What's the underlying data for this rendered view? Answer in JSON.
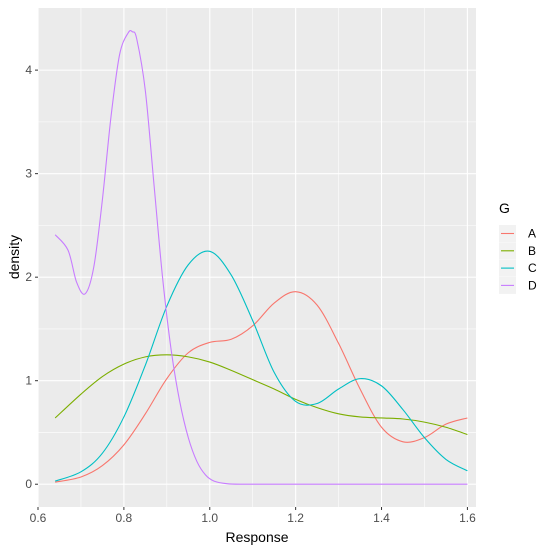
{
  "chart_data": {
    "type": "line",
    "title": "",
    "xlabel": "Response",
    "ylabel": "density",
    "xlim": [
      0.6,
      1.62
    ],
    "ylim": [
      -0.22,
      4.6
    ],
    "x_ticks": [
      0.6,
      0.8,
      1.0,
      1.2,
      1.4,
      1.6
    ],
    "x_tick_labels": [
      "0.6",
      "0.8",
      "1.0",
      "1.2",
      "1.4",
      "1.6"
    ],
    "y_ticks": [
      0,
      1,
      2,
      3,
      4
    ],
    "y_tick_labels": [
      "0",
      "1",
      "2",
      "3",
      "4"
    ],
    "grid": true,
    "panel_background": "#ebebeb",
    "legend": {
      "title": "G",
      "position": "right"
    },
    "series": [
      {
        "name": "A",
        "color": "#F8766D",
        "x": [
          0.64,
          0.7,
          0.75,
          0.8,
          0.85,
          0.9,
          0.95,
          1.0,
          1.05,
          1.1,
          1.15,
          1.2,
          1.25,
          1.3,
          1.35,
          1.4,
          1.45,
          1.5,
          1.55,
          1.6
        ],
        "y": [
          0.02,
          0.07,
          0.18,
          0.38,
          0.68,
          1.02,
          1.27,
          1.37,
          1.4,
          1.53,
          1.75,
          1.86,
          1.73,
          1.36,
          0.92,
          0.55,
          0.41,
          0.45,
          0.58,
          0.64
        ]
      },
      {
        "name": "B",
        "color": "#7CAE00",
        "x": [
          0.64,
          0.7,
          0.75,
          0.8,
          0.85,
          0.9,
          0.95,
          1.0,
          1.05,
          1.1,
          1.15,
          1.2,
          1.25,
          1.3,
          1.35,
          1.4,
          1.45,
          1.5,
          1.55,
          1.6
        ],
        "y": [
          0.64,
          0.87,
          1.04,
          1.16,
          1.23,
          1.25,
          1.23,
          1.18,
          1.1,
          1.01,
          0.92,
          0.82,
          0.74,
          0.68,
          0.65,
          0.64,
          0.63,
          0.6,
          0.55,
          0.48
        ]
      },
      {
        "name": "C",
        "color": "#00BFC4",
        "x": [
          0.64,
          0.7,
          0.75,
          0.8,
          0.85,
          0.9,
          0.95,
          1.0,
          1.05,
          1.1,
          1.15,
          1.2,
          1.25,
          1.3,
          1.35,
          1.4,
          1.45,
          1.5,
          1.55,
          1.6
        ],
        "y": [
          0.03,
          0.12,
          0.3,
          0.65,
          1.15,
          1.72,
          2.12,
          2.25,
          2.02,
          1.58,
          1.08,
          0.8,
          0.78,
          0.92,
          1.02,
          0.95,
          0.72,
          0.45,
          0.24,
          0.13
        ]
      },
      {
        "name": "D",
        "color": "#C77CFF",
        "x": [
          0.64,
          0.67,
          0.69,
          0.71,
          0.73,
          0.75,
          0.77,
          0.79,
          0.81,
          0.82,
          0.83,
          0.85,
          0.87,
          0.89,
          0.91,
          0.93,
          0.95,
          0.97,
          0.99,
          1.01,
          1.04,
          1.08,
          1.2,
          1.4,
          1.6
        ],
        "y": [
          2.41,
          2.26,
          1.95,
          1.84,
          2.1,
          2.75,
          3.55,
          4.15,
          4.36,
          4.37,
          4.3,
          3.8,
          2.9,
          2.0,
          1.3,
          0.8,
          0.45,
          0.22,
          0.09,
          0.03,
          0.005,
          0.0,
          0.0,
          0.0,
          0.0
        ]
      }
    ]
  }
}
